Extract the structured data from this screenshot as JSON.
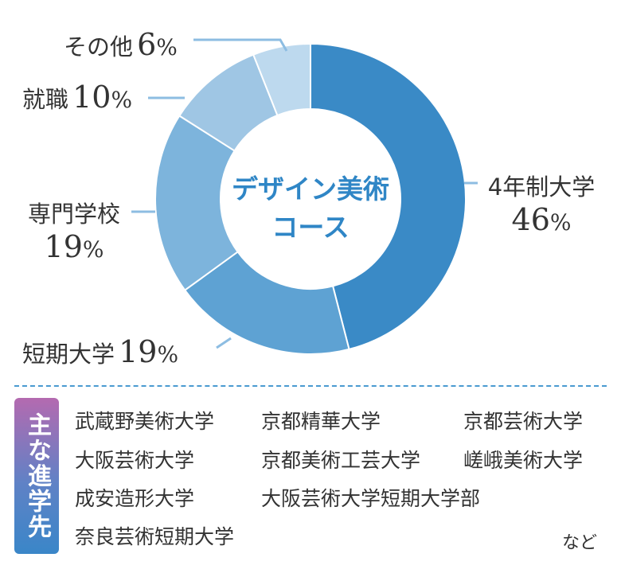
{
  "chart_data": {
    "type": "pie",
    "categories": [
      "4年制大学",
      "短期大学",
      "専門学校",
      "就職",
      "その他"
    ],
    "values": [
      46,
      19,
      19,
      10,
      6
    ],
    "unit": "%",
    "colors": [
      "#3a8ac6",
      "#5ea2d3",
      "#7db4dc",
      "#9fc6e4",
      "#bdd9ee"
    ],
    "center_label": [
      "デザイン美術",
      "コース"
    ]
  },
  "labels": {
    "univ4": {
      "name": "4年制大学",
      "value": "46",
      "unit": "%"
    },
    "junior": {
      "name": "短期大学",
      "value": "19",
      "unit": "%"
    },
    "vocational": {
      "name": "専門学校",
      "value": "19",
      "unit": "%"
    },
    "employment": {
      "name": "就職",
      "value": "10",
      "unit": "%"
    },
    "other": {
      "name": "その他",
      "value": "6",
      "unit": "%"
    }
  },
  "destinations": {
    "heading": "主な進学先",
    "items": [
      "武蔵野美術大学",
      "京都精華大学",
      "京都芸術大学",
      "大阪芸術大学",
      "京都美術工芸大学",
      "嵯峨美術大学",
      "成安造形大学",
      "大阪芸術大学短期大学部",
      "奈良芸術短期大学"
    ],
    "etc": "など"
  }
}
